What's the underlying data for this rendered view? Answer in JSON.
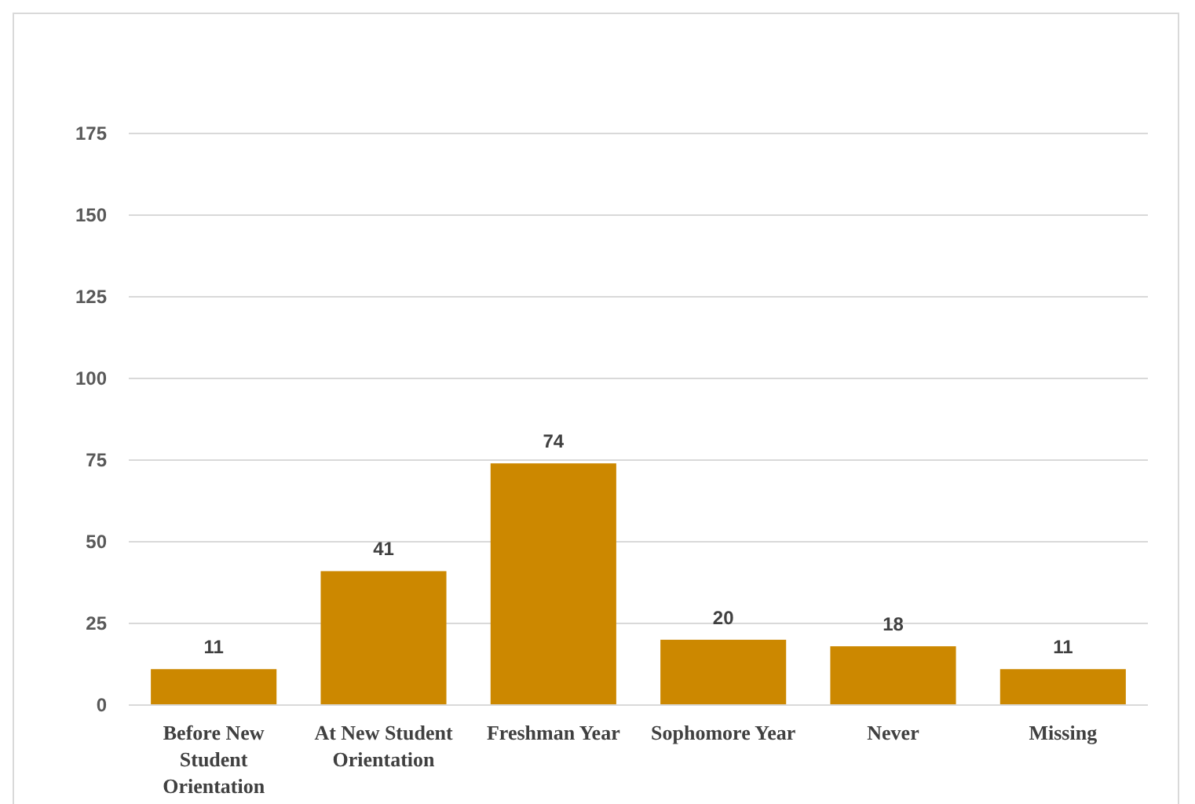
{
  "chart_data": {
    "type": "bar",
    "categories": [
      "Before New Student Orientation",
      "At New Student Orientation",
      "Freshman Year",
      "Sophomore Year",
      "Never",
      "Missing"
    ],
    "values": [
      11,
      41,
      74,
      20,
      18,
      11
    ],
    "color": "#cc8800",
    "ylim": [
      0,
      175
    ],
    "yticks": [
      0,
      25,
      50,
      75,
      100,
      125,
      150,
      175
    ],
    "grid": "y",
    "data_labels": true
  }
}
